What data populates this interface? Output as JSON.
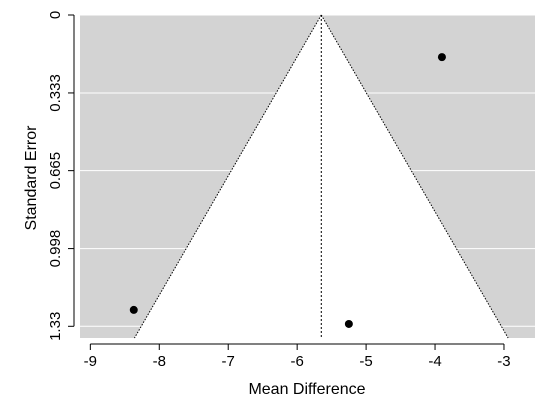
{
  "chart_data": {
    "type": "scatter",
    "subtype": "funnel-plot",
    "title": "",
    "xlabel": "Mean Difference",
    "ylabel": "Standard Error",
    "xlim": [
      -9.15,
      -2.55
    ],
    "ylim": [
      0,
      1.38
    ],
    "y_reversed": true,
    "x_ticks": [
      -9,
      -8,
      -7,
      -6,
      -5,
      -4,
      -3
    ],
    "x_tick_labels": [
      "-9",
      "-8",
      "-7",
      "-6",
      "-5",
      "-4",
      "-3"
    ],
    "y_ticks": [
      0,
      0.333,
      0.665,
      0.998,
      1.33
    ],
    "y_tick_labels": [
      "0",
      "0.333",
      "0.665",
      "0.998",
      "1.33"
    ],
    "grid": true,
    "legend": "none",
    "pooled_estimate": -5.65,
    "funnel": {
      "apex": [
        -5.65,
        0
      ],
      "bottom_left": [
        -8.36,
        1.38
      ],
      "bottom_right": [
        -2.94,
        1.38
      ]
    },
    "points": [
      {
        "x": -8.37,
        "y": 1.26
      },
      {
        "x": -5.25,
        "y": 1.32
      },
      {
        "x": -3.9,
        "y": 0.18
      }
    ],
    "colors": {
      "panel": "#d3d3d3",
      "funnel": "#ffffff",
      "points": "#000000",
      "grid": "#ffffff"
    }
  }
}
